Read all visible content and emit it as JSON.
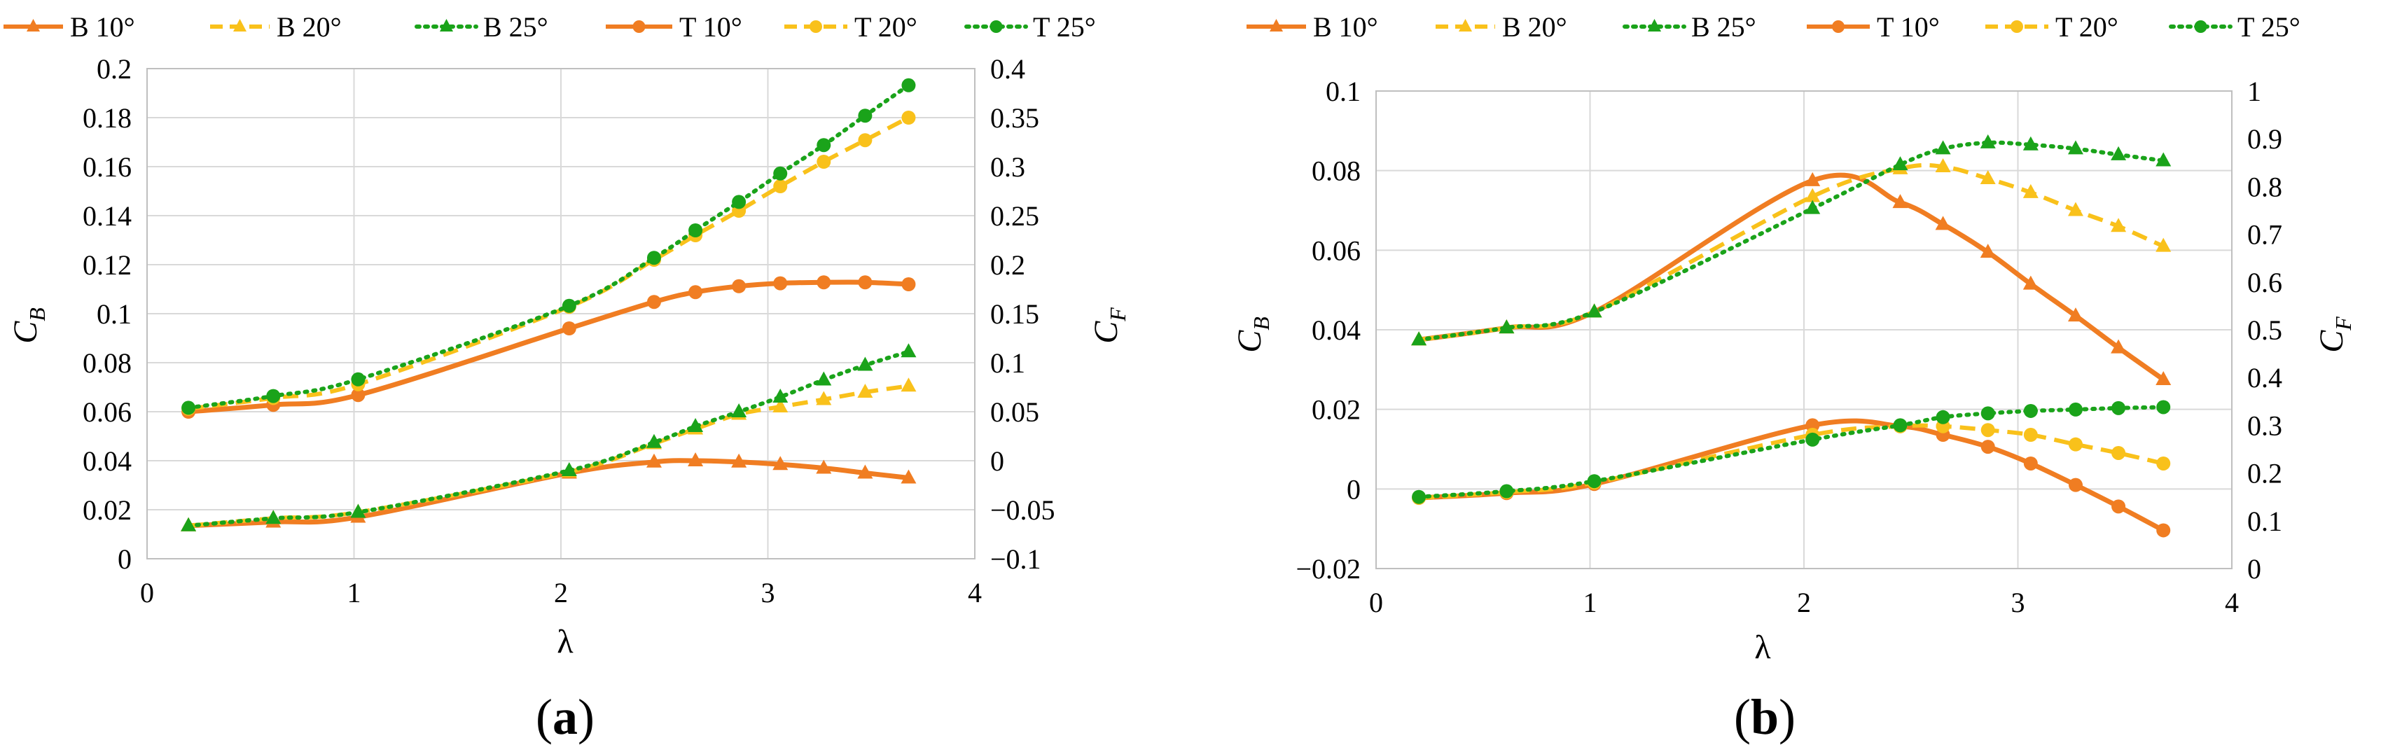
{
  "colors": {
    "B 10°": "#F07D22",
    "B 20°": "#F9C11B",
    "B 25°": "#1AA31A",
    "T 10°": "#F07D22",
    "T 20°": "#F9C11B",
    "T 25°": "#1AA31A",
    "grid": "#D9D9D9",
    "frame": "#BFBFBF"
  },
  "chart_data": [
    {
      "type": "line",
      "panel_label": "a",
      "x_axis": {
        "label": "λ",
        "range": [
          0,
          4
        ],
        "ticks": [
          "0",
          "1",
          "2",
          "3",
          "4"
        ]
      },
      "y_left": {
        "label": "C",
        "sub": "B",
        "range": [
          0,
          0.2
        ],
        "ticks": [
          "0",
          "0.02",
          "0.04",
          "0.06",
          "0.08",
          "0.1",
          "0.12",
          "0.14",
          "0.16",
          "0.18",
          "0.2"
        ]
      },
      "y_right": {
        "label": "C",
        "sub": "F",
        "range": [
          -0.1,
          0.4
        ],
        "ticks": [
          "−0.1",
          "−0.05",
          "0",
          "0.05",
          "0.1",
          "0.15",
          "0.2",
          "0.25",
          "0.3",
          "0.35",
          "0.4"
        ]
      },
      "legend": [
        "B 10°",
        "B 20°",
        "B 25°",
        "T 10°",
        "T 20°",
        "T 25°"
      ],
      "series": [
        {
          "name": "B 10°",
          "axis": "left",
          "marker": "triangle",
          "dash": "solid",
          "x": [
            0.2,
            0.61,
            1.02,
            2.04,
            2.45,
            2.65,
            2.86,
            3.06,
            3.27,
            3.47,
            3.68
          ],
          "y": [
            0.0135,
            0.015,
            0.017,
            0.035,
            0.0395,
            0.04,
            0.0395,
            0.0385,
            0.037,
            0.035,
            0.033
          ]
        },
        {
          "name": "B 20°",
          "axis": "left",
          "marker": "triangle",
          "dash": "dash",
          "x": [
            0.2,
            0.61,
            1.02,
            2.04,
            2.45,
            2.65,
            2.86,
            3.06,
            3.27,
            3.47,
            3.68
          ],
          "y": [
            0.0135,
            0.0165,
            0.019,
            0.0355,
            0.047,
            0.053,
            0.059,
            0.062,
            0.065,
            0.068,
            0.0705
          ]
        },
        {
          "name": "B 25°",
          "axis": "left",
          "marker": "triangle",
          "dash": "dot",
          "x": [
            0.2,
            0.61,
            1.02,
            2.04,
            2.45,
            2.65,
            2.86,
            3.06,
            3.27,
            3.47,
            3.68
          ],
          "y": [
            0.0135,
            0.0165,
            0.019,
            0.036,
            0.0475,
            0.054,
            0.06,
            0.066,
            0.073,
            0.079,
            0.0845
          ]
        },
        {
          "name": "T 10°",
          "axis": "right",
          "marker": "circle",
          "dash": "solid",
          "x": [
            0.2,
            0.61,
            1.02,
            2.04,
            2.45,
            2.65,
            2.86,
            3.06,
            3.27,
            3.47,
            3.68
          ],
          "y": [
            0.05,
            0.057,
            0.067,
            0.135,
            0.162,
            0.172,
            0.178,
            0.181,
            0.182,
            0.182,
            0.18
          ]
        },
        {
          "name": "T 20°",
          "axis": "right",
          "marker": "circle",
          "dash": "dash",
          "x": [
            0.2,
            0.61,
            1.02,
            2.04,
            2.45,
            2.65,
            2.86,
            3.06,
            3.27,
            3.47,
            3.68
          ],
          "y": [
            0.053,
            0.064,
            0.078,
            0.157,
            0.205,
            0.23,
            0.255,
            0.28,
            0.305,
            0.327,
            0.35
          ]
        },
        {
          "name": "T 25°",
          "axis": "right",
          "marker": "circle",
          "dash": "dot",
          "x": [
            0.2,
            0.61,
            1.02,
            2.04,
            2.45,
            2.65,
            2.86,
            3.06,
            3.27,
            3.47,
            3.68
          ],
          "y": [
            0.054,
            0.066,
            0.083,
            0.158,
            0.207,
            0.235,
            0.264,
            0.293,
            0.322,
            0.352,
            0.383
          ]
        }
      ]
    },
    {
      "type": "line",
      "panel_label": "b",
      "x_axis": {
        "label": "λ",
        "range": [
          0,
          4
        ],
        "ticks": [
          "0",
          "1",
          "2",
          "3",
          "4"
        ]
      },
      "y_left": {
        "label": "C",
        "sub": "B",
        "range": [
          -0.02,
          0.1
        ],
        "ticks": [
          "−0.02",
          "0",
          "0.02",
          "0.04",
          "0.06",
          "0.08",
          "0.1"
        ]
      },
      "y_right": {
        "label": "C",
        "sub": "F",
        "range": [
          0,
          1
        ],
        "ticks": [
          "0",
          "0.1",
          "0.2",
          "0.3",
          "0.4",
          "0.5",
          "0.6",
          "0.7",
          "0.8",
          "0.9",
          "1"
        ]
      },
      "legend": [
        "B 10°",
        "B 20°",
        "B 25°",
        "T 10°",
        "T 20°",
        "T 25°"
      ],
      "series": [
        {
          "name": "B 10°",
          "axis": "left",
          "marker": "triangle",
          "dash": "solid",
          "x": [
            0.2,
            0.61,
            1.02,
            2.04,
            2.45,
            2.65,
            2.86,
            3.06,
            3.27,
            3.47,
            3.68
          ],
          "y": [
            0.0375,
            0.0405,
            0.0445,
            0.0775,
            0.072,
            0.0665,
            0.0595,
            0.0515,
            0.0435,
            0.0355,
            0.0275
          ]
        },
        {
          "name": "B 20°",
          "axis": "left",
          "marker": "triangle",
          "dash": "dash",
          "x": [
            0.2,
            0.61,
            1.02,
            2.04,
            2.45,
            2.65,
            2.86,
            3.06,
            3.27,
            3.47,
            3.68
          ],
          "y": [
            0.0375,
            0.0405,
            0.0445,
            0.0735,
            0.0805,
            0.081,
            0.078,
            0.0745,
            0.07,
            0.066,
            0.061
          ]
        },
        {
          "name": "B 25°",
          "axis": "left",
          "marker": "triangle",
          "dash": "dot",
          "x": [
            0.2,
            0.61,
            1.02,
            2.04,
            2.45,
            2.65,
            2.86,
            3.06,
            3.27,
            3.47,
            3.68
          ],
          "y": [
            0.0375,
            0.0405,
            0.0445,
            0.0705,
            0.0815,
            0.0855,
            0.087,
            0.0865,
            0.0855,
            0.084,
            0.0825
          ]
        },
        {
          "name": "T 10°",
          "axis": "right",
          "marker": "circle",
          "dash": "solid",
          "x": [
            0.2,
            0.61,
            1.02,
            2.04,
            2.45,
            2.65,
            2.86,
            3.06,
            3.27,
            3.47,
            3.68
          ],
          "y": [
            0.148,
            0.158,
            0.177,
            0.3,
            0.298,
            0.28,
            0.255,
            0.22,
            0.175,
            0.13,
            0.08
          ]
        },
        {
          "name": "T 20°",
          "axis": "right",
          "marker": "circle",
          "dash": "dash",
          "x": [
            0.2,
            0.61,
            1.02,
            2.04,
            2.45,
            2.65,
            2.86,
            3.06,
            3.27,
            3.47,
            3.68
          ],
          "y": [
            0.148,
            0.16,
            0.18,
            0.28,
            0.298,
            0.298,
            0.29,
            0.28,
            0.26,
            0.242,
            0.22
          ]
        },
        {
          "name": "T 25°",
          "axis": "right",
          "marker": "circle",
          "dash": "dot",
          "x": [
            0.2,
            0.61,
            1.02,
            2.04,
            2.45,
            2.65,
            2.86,
            3.06,
            3.27,
            3.47,
            3.68
          ],
          "y": [
            0.15,
            0.162,
            0.183,
            0.27,
            0.3,
            0.317,
            0.325,
            0.33,
            0.333,
            0.336,
            0.338
          ]
        }
      ]
    }
  ]
}
